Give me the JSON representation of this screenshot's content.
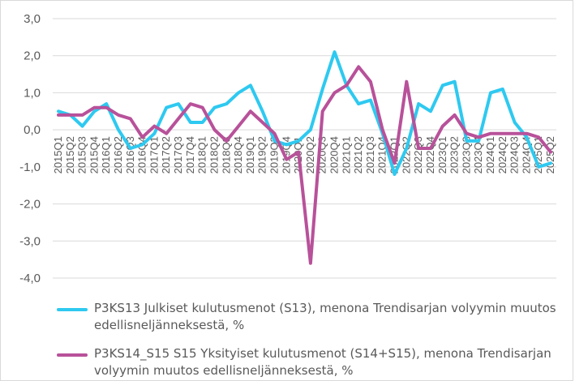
{
  "chart_data": {
    "type": "line",
    "title": "",
    "xlabel": "",
    "ylabel": "",
    "ylim": [
      -4.0,
      3.0
    ],
    "yticks": [
      "3,0",
      "2,0",
      "1,0",
      "0,0",
      "-1,0",
      "-2,0",
      "-3,0",
      "-4,0"
    ],
    "ytick_values": [
      3,
      2,
      1,
      0,
      -1,
      -2,
      -3,
      -4
    ],
    "grid": true,
    "legend_placement": "bottom",
    "categories": [
      "2015Q1",
      "2015Q2",
      "2015Q3",
      "2015Q4",
      "2016Q1",
      "2016Q2",
      "2016Q3",
      "2016Q4",
      "2017Q1",
      "2017Q2",
      "2017Q3",
      "2017Q4",
      "2018Q1",
      "2018Q2",
      "2018Q3",
      "2018Q4",
      "2019Q1",
      "2019Q2",
      "2019Q3",
      "2019Q4",
      "2020Q1",
      "2020Q2",
      "2020Q3",
      "2020Q4",
      "2021Q1",
      "2021Q2",
      "2021Q3",
      "2021Q4",
      "2022Q1",
      "2022Q2",
      "2022Q3",
      "2022Q4",
      "2023Q1",
      "2023Q2",
      "2023Q3",
      "2023Q4",
      "2024Q1",
      "2024Q2",
      "2024Q3",
      "2024Q4",
      "2025Q1",
      "2025Q2"
    ],
    "series": [
      {
        "name": "P3KS13 Julkiset kulutusmenot (S13), menona Trendisarjan volyymin muutos edellisneljänneksestä, %",
        "color": "#2ec9f0",
        "values": [
          0.5,
          0.4,
          0.1,
          0.5,
          0.7,
          0.0,
          -0.5,
          -0.4,
          -0.1,
          0.6,
          0.7,
          0.2,
          0.2,
          0.6,
          0.7,
          1.0,
          1.2,
          0.5,
          -0.3,
          -0.4,
          -0.3,
          0.0,
          1.1,
          2.1,
          1.2,
          0.7,
          0.8,
          -0.1,
          -1.2,
          -0.5,
          0.7,
          0.5,
          1.2,
          1.3,
          -0.3,
          -0.3,
          1.0,
          1.1,
          0.2,
          -0.2,
          -1.0,
          -0.9
        ]
      },
      {
        "name": "P3KS14_S15 S15 Yksityiset kulutusmenot (S14+S15), menona Trendisarjan volyymin muutos edellisneljänneksestä, %",
        "color": "#b8519a",
        "values": [
          0.4,
          0.4,
          0.4,
          0.6,
          0.6,
          0.4,
          0.3,
          -0.2,
          0.1,
          -0.1,
          0.3,
          0.7,
          0.6,
          0.0,
          -0.3,
          0.1,
          0.5,
          0.2,
          -0.1,
          -0.8,
          -0.6,
          -3.6,
          0.5,
          1.0,
          1.2,
          1.7,
          1.3,
          0.0,
          -0.9,
          1.3,
          -0.5,
          -0.5,
          0.1,
          0.4,
          -0.1,
          -0.2,
          -0.1,
          -0.1,
          -0.1,
          -0.1,
          -0.2,
          -0.6
        ]
      }
    ]
  }
}
